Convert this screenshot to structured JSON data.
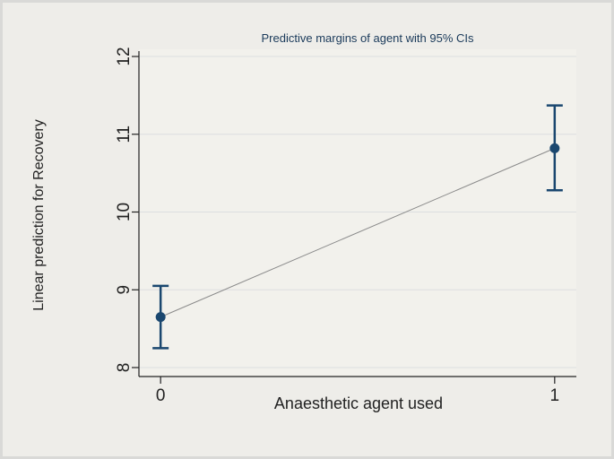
{
  "chart_data": {
    "type": "errorbar-line",
    "title": "Predictive margins of agent with 95% CIs",
    "x_label": "Anaesthetic agent used",
    "y_label": "Linear prediction for Recovery",
    "x": [
      0,
      1
    ],
    "xlim": [
      -0.055,
      1.055
    ],
    "xticks": [
      0,
      1
    ],
    "ylim": [
      8,
      12
    ],
    "yticks": [
      8,
      9,
      10,
      11,
      12
    ],
    "grid": true,
    "series": [
      {
        "color": "#1a476f",
        "values": [
          8.65,
          10.82
        ],
        "ci_low": [
          8.25,
          10.28
        ],
        "ci_high": [
          9.05,
          11.37
        ]
      }
    ],
    "line_color": "#8a8a8a"
  }
}
